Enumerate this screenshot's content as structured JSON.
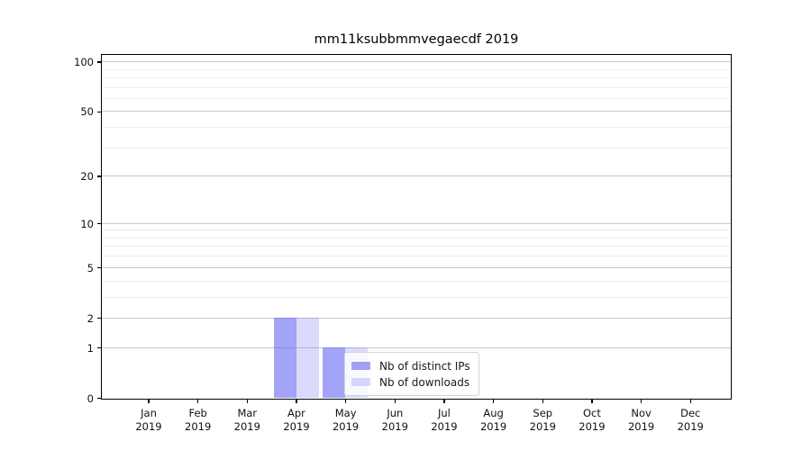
{
  "title": "mm11ksubbmmvegaecdf 2019",
  "chart_data": {
    "type": "bar",
    "title": "mm11ksubbmmvegaecdf 2019",
    "x": {
      "months": [
        "Jan",
        "Feb",
        "Mar",
        "Apr",
        "May",
        "Jun",
        "Jul",
        "Aug",
        "Sep",
        "Oct",
        "Nov",
        "Dec"
      ],
      "year": "2019"
    },
    "series": [
      {
        "name": "Nb of distinct IPs",
        "color": "rgba(101,101,244,0.6)",
        "values": [
          0,
          0,
          0,
          2,
          1,
          0,
          0,
          0,
          0,
          0,
          0,
          0
        ]
      },
      {
        "name": "Nb of downloads",
        "color": "rgba(101,101,244,0.24)",
        "values": [
          0,
          0,
          0,
          2,
          1,
          0,
          0,
          0,
          0,
          0,
          0,
          0
        ]
      }
    ],
    "yscale": "log1p",
    "ylim": [
      0,
      110
    ],
    "y_major_ticks": [
      0,
      1,
      2,
      5,
      10,
      20,
      50,
      100
    ],
    "y_minor_ticks": [
      3,
      4,
      6,
      7,
      8,
      9,
      30,
      40,
      60,
      70,
      80,
      90
    ],
    "grid": "horizontal-only",
    "legend_position": "lower-center-inside",
    "style": {
      "spine_color": "#000000",
      "grid_major_color": "#c9c9c9",
      "grid_minor_color": "#ededed",
      "legend_border_color": "#d4d4d4",
      "legend_bg": "rgba(255,255,255,0.8)",
      "text_color": "#111111"
    }
  }
}
